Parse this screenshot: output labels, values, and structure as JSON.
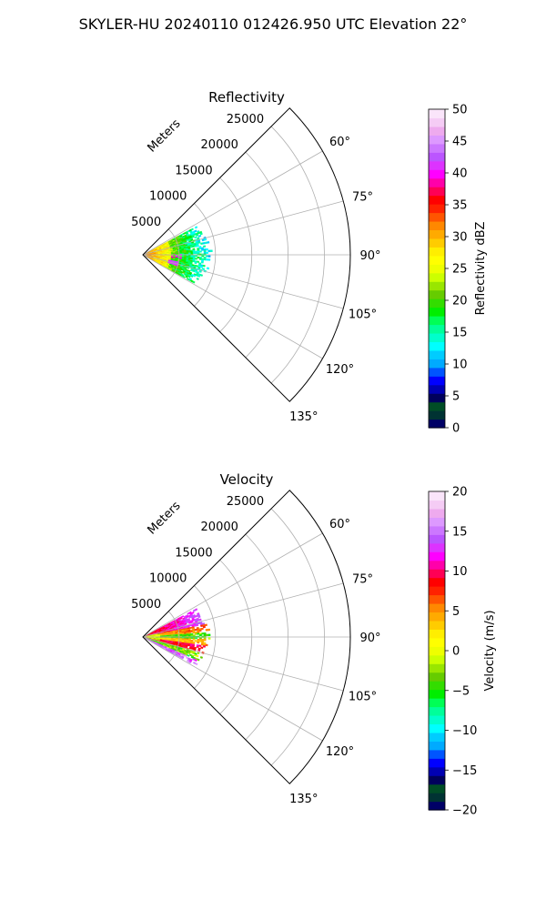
{
  "figure_title": "SKYLER-HU  20240110  012426.950 UTC Elevation 22°",
  "chart_data": [
    {
      "type": "heatmap",
      "title": "Reflectivity",
      "range_label": "Meters",
      "range_ticks": [
        5000,
        10000,
        15000,
        20000,
        25000
      ],
      "range_ticks_text": [
        "5000",
        "10000",
        "15000",
        "20000",
        "25000"
      ],
      "azimuth_range_deg": [
        45,
        135
      ],
      "azimuth_ticks": [
        "60°",
        "75°",
        "90°",
        "105°",
        "120°",
        "135°"
      ],
      "azimuth_tick_values": [
        60,
        75,
        90,
        105,
        120,
        135
      ],
      "data_max_range_m": 9000,
      "grid": true,
      "colorbar": {
        "label": "Reflectivity dBZ",
        "min": 0,
        "max": 50,
        "ticks": [
          "0",
          "5",
          "10",
          "15",
          "20",
          "25",
          "30",
          "35",
          "40",
          "45",
          "50"
        ],
        "tick_values": [
          0,
          5,
          10,
          15,
          20,
          25,
          30,
          35,
          40,
          45,
          50
        ],
        "colors": [
          "#000066",
          "#003333",
          "#004d26",
          "#00005c",
          "#0000b3",
          "#0000ff",
          "#0055ff",
          "#00aaff",
          "#00ccff",
          "#00ffff",
          "#00ffcc",
          "#00ff99",
          "#00ff55",
          "#00ee00",
          "#33dd00",
          "#66cc00",
          "#99e600",
          "#ccff00",
          "#eeff00",
          "#ffff00",
          "#ffee00",
          "#ffcc00",
          "#ffaa00",
          "#ff8800",
          "#ff5500",
          "#ff2200",
          "#ff0000",
          "#ff0055",
          "#ff00aa",
          "#ff00ff",
          "#dd33ff",
          "#bb55ff",
          "#cc77ff",
          "#dd99ff",
          "#eeaaee",
          "#f5ccf5",
          "#fae5fa"
        ]
      }
    },
    {
      "type": "heatmap",
      "title": "Velocity",
      "range_label": "Meters",
      "range_ticks": [
        5000,
        10000,
        15000,
        20000,
        25000
      ],
      "range_ticks_text": [
        "5000",
        "10000",
        "15000",
        "20000",
        "25000"
      ],
      "azimuth_range_deg": [
        45,
        135
      ],
      "azimuth_ticks": [
        "60°",
        "75°",
        "90°",
        "105°",
        "120°",
        "135°"
      ],
      "azimuth_tick_values": [
        60,
        75,
        90,
        105,
        120,
        135
      ],
      "data_max_range_m": 9000,
      "grid": true,
      "colorbar": {
        "label": "Velocity (m/s)",
        "min": -20,
        "max": 20,
        "ticks": [
          "−20",
          "−15",
          "−10",
          "−5",
          "0",
          "5",
          "10",
          "15",
          "20"
        ],
        "tick_values": [
          -20,
          -15,
          -10,
          -5,
          0,
          5,
          10,
          15,
          20
        ],
        "colors": [
          "#000066",
          "#003333",
          "#004d26",
          "#00005c",
          "#0000b3",
          "#0000ff",
          "#0055ff",
          "#00aaff",
          "#00ccff",
          "#00ffff",
          "#00ffcc",
          "#00ff99",
          "#00ff55",
          "#00ee00",
          "#33dd00",
          "#66cc00",
          "#99e600",
          "#ccff00",
          "#eeff00",
          "#ffff00",
          "#ffee00",
          "#ffcc00",
          "#ffaa00",
          "#ff8800",
          "#ff5500",
          "#ff2200",
          "#ff0000",
          "#ff0055",
          "#ff00aa",
          "#ff00ff",
          "#dd33ff",
          "#bb55ff",
          "#cc77ff",
          "#dd99ff",
          "#eeaaee",
          "#f5ccf5",
          "#fae5fa"
        ]
      }
    }
  ]
}
